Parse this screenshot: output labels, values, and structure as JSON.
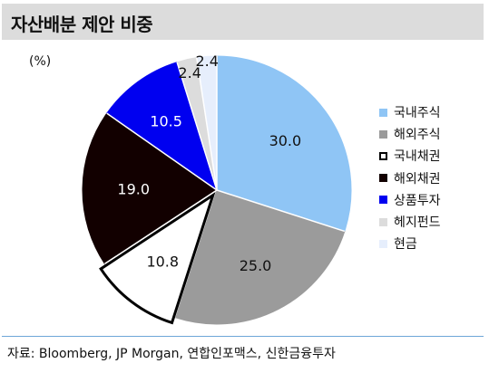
{
  "title": "자산배분 제안 비중",
  "unit_label": "(%)",
  "source_note": "자료: Bloomberg, JP Morgan, 연합인포맥스, 신한금융투자",
  "chart_data": {
    "type": "pie",
    "title": "자산배분 제안 비중",
    "unit": "(%)",
    "legend_position": "right",
    "slices": [
      {
        "label": "국내주식",
        "value": 30.0,
        "value_label": "30.0",
        "color": "#8fc5f5",
        "border": "#8fc5f5",
        "text_color": "#111111"
      },
      {
        "label": "해외주식",
        "value": 25.0,
        "value_label": "25.0",
        "color": "#9b9b9b",
        "border": "#9b9b9b",
        "text_color": "#111111"
      },
      {
        "label": "국내채권",
        "value": 10.8,
        "value_label": "10.8",
        "color": "#ffffff",
        "border": "#000000",
        "text_color": "#111111"
      },
      {
        "label": "해외채권",
        "value": 19.0,
        "value_label": "19.0",
        "color": "#120000",
        "border": "#120000",
        "text_color": "#ffffff"
      },
      {
        "label": "상품투자",
        "value": 10.5,
        "value_label": "10.5",
        "color": "#0000f0",
        "border": "#0000f0",
        "text_color": "#ffffff"
      },
      {
        "label": "헤지펀드",
        "value": 2.4,
        "value_label": "2.4",
        "color": "#dcdcdc",
        "border": "#dcdcdc",
        "text_color": "#111111"
      },
      {
        "label": "현금",
        "value": 2.4,
        "value_label": "2.4",
        "color": "#e6eefc",
        "border": "#e6eefc",
        "text_color": "#111111"
      }
    ]
  }
}
